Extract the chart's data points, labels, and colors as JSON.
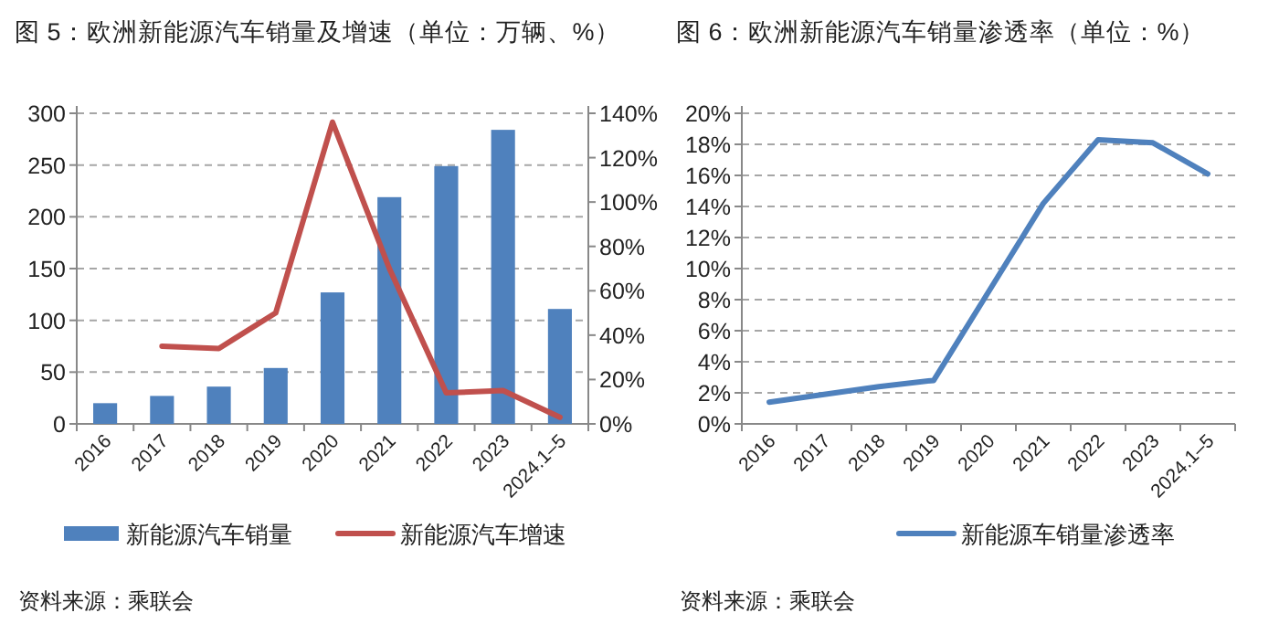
{
  "chart_data": [
    {
      "type": "bar",
      "title": "图 5：欧洲新能源汽车销量及增速（单位：万辆、%）",
      "categories": [
        "2016",
        "2017",
        "2018",
        "2019",
        "2020",
        "2021",
        "2022",
        "2023",
        "2024.1–5"
      ],
      "series": [
        {
          "name": "新能源汽车销量",
          "color": "#4f81bd",
          "values": [
            20,
            27,
            36,
            54,
            127,
            219,
            249,
            284,
            111
          ]
        },
        {
          "name": "新能源汽车增速",
          "type": "line",
          "axis": "y2",
          "color": "#c0504d",
          "values": [
            null,
            35,
            34,
            50,
            136,
            70,
            14,
            15,
            3
          ]
        }
      ],
      "ylim": [
        0,
        300
      ],
      "yticks": [
        0,
        50,
        100,
        150,
        200,
        250,
        300
      ],
      "y2lim": [
        0,
        140
      ],
      "y2ticks": [
        {
          "value": 0,
          "label": "0%"
        },
        {
          "value": 20,
          "label": "20%"
        },
        {
          "value": 40,
          "label": "40%"
        },
        {
          "value": 60,
          "label": "60%"
        },
        {
          "value": 80,
          "label": "80%"
        },
        {
          "value": 100,
          "label": "100%"
        },
        {
          "value": 120,
          "label": "120%"
        },
        {
          "value": 140,
          "label": "140%"
        }
      ],
      "grid": "y",
      "legend": "bottom",
      "annotations": [
        "资料来源：乘联会"
      ]
    },
    {
      "type": "line",
      "title": "图 6：欧洲新能源汽车销量渗透率（单位：%）",
      "categories": [
        "2016",
        "2017",
        "2018",
        "2019",
        "2020",
        "2021",
        "2022",
        "2023",
        "2024.1–5"
      ],
      "series": [
        {
          "name": "新能源车销量渗透率",
          "color": "#4f81bd",
          "values": [
            1.4,
            1.9,
            2.4,
            2.8,
            8.5,
            14.2,
            18.3,
            18.1,
            16.1
          ]
        }
      ],
      "ylim": [
        0,
        20
      ],
      "yticks": [
        {
          "value": 0,
          "label": "0%"
        },
        {
          "value": 2,
          "label": "2%"
        },
        {
          "value": 4,
          "label": "4%"
        },
        {
          "value": 6,
          "label": "6%"
        },
        {
          "value": 8,
          "label": "8%"
        },
        {
          "value": 10,
          "label": "10%"
        },
        {
          "value": 12,
          "label": "12%"
        },
        {
          "value": 14,
          "label": "14%"
        },
        {
          "value": 16,
          "label": "16%"
        },
        {
          "value": 18,
          "label": "18%"
        },
        {
          "value": 20,
          "label": "20%"
        }
      ],
      "grid": "y",
      "legend": "bottom",
      "annotations": [
        "资料来源：乘联会"
      ]
    }
  ]
}
